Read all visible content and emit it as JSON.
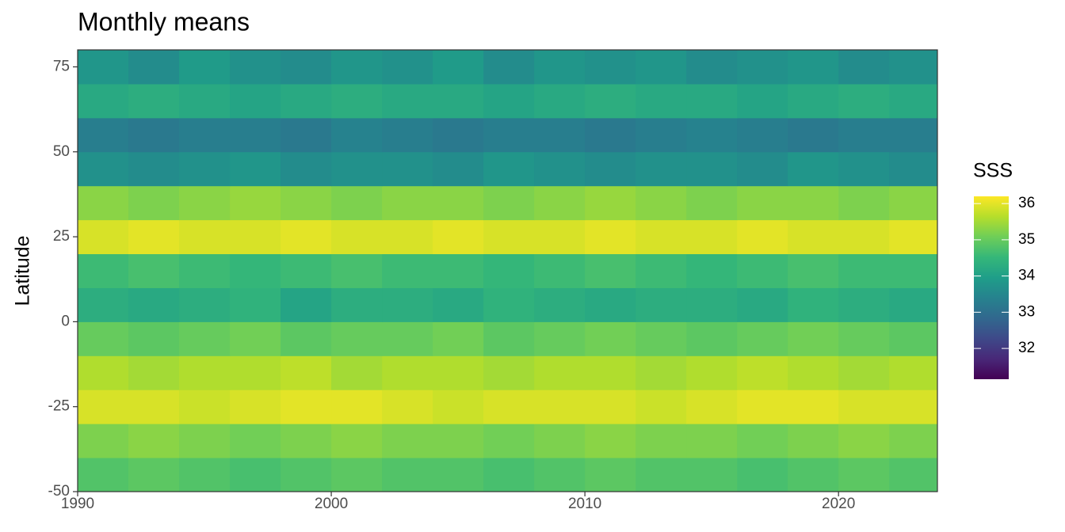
{
  "chart_data": {
    "type": "heatmap",
    "title": "Monthly means",
    "y_label": "Latitude",
    "legend_title": "SSS",
    "xbins": [
      1990,
      1992,
      1994,
      1996,
      1998,
      2000,
      2002,
      2004,
      2006,
      2008,
      2010,
      2012,
      2014,
      2016,
      2018,
      2020,
      2022,
      2024
    ],
    "ybins": [
      -50,
      -40,
      -30,
      -20,
      -10,
      0,
      10,
      20,
      30,
      40,
      50,
      60,
      70,
      80
    ],
    "values": [
      [
        34.8,
        34.9,
        34.8,
        34.7,
        34.8,
        34.9,
        34.8,
        34.8,
        34.7,
        34.8,
        34.9,
        34.8,
        34.8,
        34.7,
        34.8,
        34.9,
        34.8
      ],
      [
        35.2,
        35.3,
        35.2,
        35.1,
        35.2,
        35.3,
        35.2,
        35.2,
        35.1,
        35.2,
        35.3,
        35.2,
        35.2,
        35.1,
        35.2,
        35.3,
        35.2
      ],
      [
        35.9,
        35.9,
        35.8,
        35.9,
        36.0,
        36.0,
        35.9,
        35.8,
        35.9,
        35.9,
        35.9,
        35.8,
        35.9,
        36.0,
        36.0,
        35.9,
        35.9
      ],
      [
        35.6,
        35.5,
        35.6,
        35.6,
        35.7,
        35.5,
        35.6,
        35.6,
        35.5,
        35.6,
        35.6,
        35.5,
        35.6,
        35.7,
        35.6,
        35.5,
        35.6
      ],
      [
        35.0,
        34.9,
        35.0,
        35.1,
        34.9,
        35.0,
        35.0,
        35.1,
        34.9,
        35.0,
        35.1,
        35.0,
        34.9,
        35.0,
        35.1,
        35.0,
        34.9
      ],
      [
        34.3,
        34.2,
        34.3,
        34.4,
        34.1,
        34.3,
        34.3,
        34.2,
        34.4,
        34.3,
        34.2,
        34.3,
        34.3,
        34.2,
        34.4,
        34.3,
        34.2
      ],
      [
        34.6,
        34.7,
        34.6,
        34.5,
        34.6,
        34.7,
        34.6,
        34.6,
        34.5,
        34.6,
        34.7,
        34.6,
        34.5,
        34.6,
        34.7,
        34.6,
        34.6
      ],
      [
        35.9,
        36.0,
        35.9,
        35.9,
        36.0,
        35.9,
        35.9,
        36.0,
        35.9,
        35.9,
        36.0,
        35.9,
        35.9,
        36.0,
        35.9,
        35.9,
        36.0
      ],
      [
        35.3,
        35.2,
        35.3,
        35.4,
        35.3,
        35.2,
        35.3,
        35.3,
        35.2,
        35.3,
        35.4,
        35.3,
        35.2,
        35.3,
        35.3,
        35.2,
        35.3
      ],
      [
        33.7,
        33.6,
        33.7,
        33.8,
        33.6,
        33.7,
        33.7,
        33.6,
        33.8,
        33.7,
        33.6,
        33.7,
        33.7,
        33.6,
        33.8,
        33.7,
        33.6
      ],
      [
        33.3,
        33.2,
        33.3,
        33.3,
        33.2,
        33.4,
        33.3,
        33.2,
        33.3,
        33.3,
        33.2,
        33.3,
        33.4,
        33.3,
        33.2,
        33.3,
        33.3
      ],
      [
        34.2,
        34.3,
        34.2,
        34.1,
        34.2,
        34.3,
        34.2,
        34.2,
        34.1,
        34.2,
        34.3,
        34.2,
        34.2,
        34.1,
        34.2,
        34.3,
        34.2
      ],
      [
        33.8,
        33.6,
        33.9,
        33.7,
        33.6,
        33.8,
        33.7,
        33.9,
        33.6,
        33.8,
        33.7,
        33.8,
        33.6,
        33.7,
        33.8,
        33.6,
        33.7
      ]
    ],
    "xlim": [
      1990,
      2023.9
    ],
    "xticks": [
      1990,
      2000,
      2010,
      2020
    ],
    "ylim": [
      -50,
      80
    ],
    "yticks": [
      -50,
      -25,
      0,
      25,
      50,
      75
    ],
    "zlim": [
      31.15,
      36.2
    ],
    "zticks": [
      32,
      33,
      34,
      35,
      36
    ],
    "colors": [
      "#440154",
      "#482878",
      "#3e4989",
      "#31688e",
      "#26828e",
      "#1f9e89",
      "#35b779",
      "#6ece58",
      "#b5de2b",
      "#fde725"
    ]
  }
}
